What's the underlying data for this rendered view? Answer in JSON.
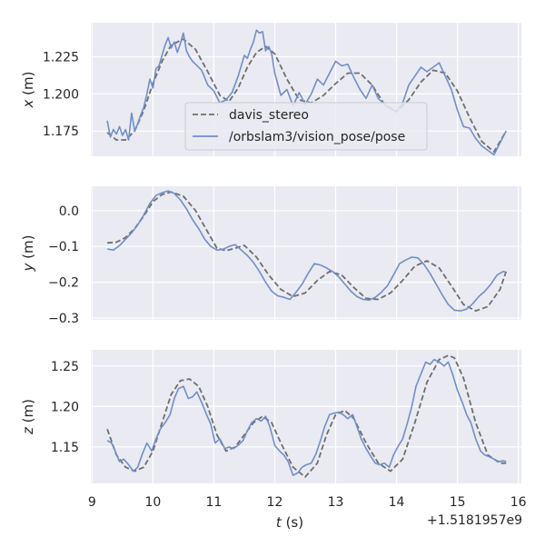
{
  "chart_data": {
    "type": "line",
    "x_label_var": "t",
    "x_label_unit": "(s)",
    "x_offset_label": "+1.5181957e9",
    "x_range": [
      8.98,
      16.05
    ],
    "x_ticks": [
      9,
      10,
      11,
      12,
      13,
      14,
      15,
      16
    ],
    "grid": true,
    "legend": {
      "placement": "inside-top-panel-center",
      "entries": [
        "davis_stereo",
        "/orbslam3/vision_pose/pose"
      ]
    },
    "series_styles": [
      {
        "name": "davis_stereo",
        "color": "#6e6e6e",
        "dash": "dashed"
      },
      {
        "name": "/orbslam3/vision_pose/pose",
        "color": "#6f8fc8",
        "dash": "solid"
      }
    ],
    "panels": [
      {
        "ylabel_var": "x",
        "ylabel_unit": "(m)",
        "ylim": [
          1.158,
          1.248
        ],
        "yticks": [
          "1.175",
          "1.200",
          "1.225"
        ],
        "series": [
          {
            "name": "davis_stereo",
            "x": [
              9.25,
              9.4,
              9.55,
              9.7,
              9.85,
              10.0,
              10.15,
              10.3,
              10.5,
              10.7,
              10.9,
              11.1,
              11.25,
              11.4,
              11.55,
              11.7,
              11.85,
              12.0,
              12.2,
              12.4,
              12.6,
              12.8,
              13.0,
              13.2,
              13.4,
              13.6,
              13.8,
              14.0,
              14.2,
              14.4,
              14.6,
              14.8,
              15.0,
              15.2,
              15.4,
              15.6,
              15.8
            ],
            "y": [
              1.174,
              1.169,
              1.169,
              1.175,
              1.189,
              1.207,
              1.222,
              1.233,
              1.237,
              1.23,
              1.215,
              1.199,
              1.195,
              1.204,
              1.218,
              1.228,
              1.232,
              1.227,
              1.21,
              1.196,
              1.194,
              1.199,
              1.207,
              1.214,
              1.214,
              1.206,
              1.193,
              1.188,
              1.196,
              1.208,
              1.216,
              1.214,
              1.202,
              1.184,
              1.168,
              1.161,
              1.175
            ]
          },
          {
            "name": "/orbslam3/vision_pose/pose",
            "x": [
              9.25,
              9.3,
              9.35,
              9.4,
              9.45,
              9.5,
              9.55,
              9.6,
              9.65,
              9.7,
              9.75,
              9.8,
              9.85,
              9.9,
              9.95,
              10.0,
              10.05,
              10.1,
              10.15,
              10.2,
              10.25,
              10.3,
              10.35,
              10.4,
              10.45,
              10.5,
              10.55,
              10.6,
              10.65,
              10.7,
              10.8,
              10.9,
              11.0,
              11.1,
              11.2,
              11.3,
              11.4,
              11.5,
              11.55,
              11.6,
              11.65,
              11.7,
              11.75,
              11.8,
              11.85,
              11.9,
              11.95,
              12.0,
              12.1,
              12.2,
              12.3,
              12.4,
              12.5,
              12.6,
              12.7,
              12.8,
              12.9,
              13.0,
              13.1,
              13.2,
              13.3,
              13.4,
              13.5,
              13.6,
              13.7,
              13.8,
              13.9,
              14.0,
              14.1,
              14.2,
              14.3,
              14.4,
              14.5,
              14.6,
              14.7,
              14.8,
              14.9,
              15.0,
              15.1,
              15.2,
              15.3,
              15.4,
              15.5,
              15.6,
              15.7,
              15.8
            ],
            "y": [
              1.182,
              1.171,
              1.176,
              1.173,
              1.178,
              1.172,
              1.176,
              1.169,
              1.187,
              1.175,
              1.18,
              1.186,
              1.191,
              1.2,
              1.21,
              1.204,
              1.217,
              1.219,
              1.226,
              1.233,
              1.238,
              1.231,
              1.235,
              1.228,
              1.234,
              1.241,
              1.229,
              1.225,
              1.222,
              1.22,
              1.216,
              1.206,
              1.202,
              1.194,
              1.196,
              1.201,
              1.212,
              1.226,
              1.224,
              1.23,
              1.235,
              1.243,
              1.241,
              1.242,
              1.229,
              1.232,
              1.227,
              1.214,
              1.199,
              1.203,
              1.192,
              1.201,
              1.193,
              1.2,
              1.21,
              1.206,
              1.214,
              1.222,
              1.219,
              1.22,
              1.211,
              1.203,
              1.197,
              1.206,
              1.197,
              1.193,
              1.19,
              1.188,
              1.194,
              1.206,
              1.212,
              1.218,
              1.215,
              1.218,
              1.221,
              1.212,
              1.203,
              1.189,
              1.178,
              1.177,
              1.17,
              1.165,
              1.162,
              1.159,
              1.167,
              1.175
            ]
          }
        ]
      },
      {
        "ylabel_var": "y",
        "ylabel_unit": "(m)",
        "ylim": [
          -0.305,
          0.068
        ],
        "yticks": [
          "0.0",
          "−0.1",
          "−0.2",
          "−0.3"
        ],
        "ytick_values": [
          0.0,
          -0.1,
          -0.2,
          -0.3
        ],
        "series": [
          {
            "name": "davis_stereo",
            "x": [
              9.25,
              9.4,
              9.55,
              9.7,
              9.85,
              10.0,
              10.15,
              10.3,
              10.5,
              10.7,
              10.9,
              11.05,
              11.2,
              11.35,
              11.5,
              11.7,
              11.9,
              12.1,
              12.3,
              12.5,
              12.7,
              12.9,
              13.1,
              13.3,
              13.5,
              13.7,
              13.9,
              14.1,
              14.3,
              14.5,
              14.7,
              14.9,
              15.1,
              15.3,
              15.5,
              15.7,
              15.8
            ],
            "y": [
              -0.09,
              -0.088,
              -0.075,
              -0.05,
              -0.015,
              0.025,
              0.045,
              0.052,
              0.04,
              0.0,
              -0.06,
              -0.105,
              -0.112,
              -0.105,
              -0.097,
              -0.13,
              -0.18,
              -0.22,
              -0.24,
              -0.23,
              -0.195,
              -0.17,
              -0.18,
              -0.215,
              -0.245,
              -0.248,
              -0.23,
              -0.195,
              -0.155,
              -0.14,
              -0.16,
              -0.21,
              -0.262,
              -0.28,
              -0.268,
              -0.22,
              -0.17
            ]
          },
          {
            "name": "/orbslam3/vision_pose/pose",
            "x": [
              9.25,
              9.35,
              9.45,
              9.55,
              9.65,
              9.75,
              9.85,
              9.95,
              10.05,
              10.15,
              10.25,
              10.35,
              10.45,
              10.55,
              10.65,
              10.75,
              10.85,
              10.95,
              11.05,
              11.15,
              11.25,
              11.35,
              11.45,
              11.55,
              11.65,
              11.75,
              11.85,
              11.95,
              12.05,
              12.15,
              12.25,
              12.35,
              12.45,
              12.55,
              12.65,
              12.75,
              12.85,
              12.95,
              13.05,
              13.15,
              13.25,
              13.35,
              13.45,
              13.55,
              13.65,
              13.75,
              13.85,
              13.95,
              14.05,
              14.15,
              14.25,
              14.35,
              14.45,
              14.55,
              14.65,
              14.75,
              14.85,
              14.95,
              15.05,
              15.15,
              15.25,
              15.35,
              15.45,
              15.55,
              15.65,
              15.75,
              15.8
            ],
            "y": [
              -0.107,
              -0.11,
              -0.098,
              -0.08,
              -0.062,
              -0.04,
              -0.012,
              0.02,
              0.042,
              0.05,
              0.055,
              0.048,
              0.03,
              0.005,
              -0.025,
              -0.05,
              -0.08,
              -0.1,
              -0.11,
              -0.108,
              -0.1,
              -0.095,
              -0.11,
              -0.125,
              -0.145,
              -0.17,
              -0.2,
              -0.225,
              -0.238,
              -0.242,
              -0.248,
              -0.228,
              -0.205,
              -0.175,
              -0.148,
              -0.152,
              -0.16,
              -0.17,
              -0.185,
              -0.205,
              -0.225,
              -0.24,
              -0.248,
              -0.25,
              -0.242,
              -0.228,
              -0.21,
              -0.18,
              -0.148,
              -0.138,
              -0.13,
              -0.132,
              -0.15,
              -0.175,
              -0.205,
              -0.235,
              -0.262,
              -0.278,
              -0.28,
              -0.275,
              -0.26,
              -0.24,
              -0.225,
              -0.205,
              -0.18,
              -0.17,
              -0.172
            ]
          }
        ]
      },
      {
        "ylabel_var": "z",
        "ylabel_unit": "(m)",
        "ylim": [
          1.105,
          1.27
        ],
        "yticks": [
          "1.15",
          "1.20",
          "1.25"
        ],
        "series": [
          {
            "name": "davis_stereo",
            "x": [
              9.25,
              9.4,
              9.55,
              9.7,
              9.85,
              10.0,
              10.15,
              10.3,
              10.45,
              10.6,
              10.75,
              10.9,
              11.05,
              11.2,
              11.35,
              11.5,
              11.65,
              11.8,
              11.95,
              12.1,
              12.3,
              12.5,
              12.7,
              12.85,
              13.0,
              13.15,
              13.3,
              13.5,
              13.7,
              13.9,
              14.1,
              14.3,
              14.5,
              14.7,
              14.85,
              14.95,
              15.1,
              15.3,
              15.5,
              15.7,
              15.8
            ],
            "y": [
              1.172,
              1.14,
              1.125,
              1.12,
              1.125,
              1.145,
              1.18,
              1.215,
              1.232,
              1.234,
              1.225,
              1.2,
              1.165,
              1.145,
              1.15,
              1.165,
              1.18,
              1.188,
              1.18,
              1.155,
              1.125,
              1.113,
              1.13,
              1.165,
              1.19,
              1.195,
              1.185,
              1.155,
              1.13,
              1.12,
              1.135,
              1.18,
              1.23,
              1.258,
              1.263,
              1.26,
              1.235,
              1.18,
              1.14,
              1.13,
              1.13
            ]
          },
          {
            "name": "/orbslam3/vision_pose/pose",
            "x": [
              9.25,
              9.32,
              9.38,
              9.45,
              9.52,
              9.6,
              9.68,
              9.75,
              9.82,
              9.9,
              9.98,
              10.05,
              10.12,
              10.2,
              10.28,
              10.35,
              10.42,
              10.5,
              10.58,
              10.65,
              10.72,
              10.8,
              10.88,
              10.95,
              11.02,
              11.1,
              11.18,
              11.25,
              11.32,
              11.4,
              11.48,
              11.55,
              11.62,
              11.7,
              11.78,
              11.85,
              11.92,
              12.0,
              12.08,
              12.15,
              12.22,
              12.3,
              12.38,
              12.45,
              12.52,
              12.6,
              12.68,
              12.75,
              12.82,
              12.9,
              12.98,
              13.05,
              13.12,
              13.2,
              13.28,
              13.35,
              13.42,
              13.5,
              13.58,
              13.65,
              13.72,
              13.8,
              13.88,
              13.95,
              14.02,
              14.1,
              14.18,
              14.25,
              14.32,
              14.4,
              14.48,
              14.55,
              14.62,
              14.7,
              14.78,
              14.85,
              14.92,
              15.0,
              15.08,
              15.15,
              15.22,
              15.3,
              15.38,
              15.45,
              15.52,
              15.6,
              15.68,
              15.75,
              15.8
            ],
            "y": [
              1.158,
              1.155,
              1.145,
              1.132,
              1.135,
              1.128,
              1.12,
              1.125,
              1.14,
              1.155,
              1.145,
              1.16,
              1.172,
              1.18,
              1.19,
              1.21,
              1.222,
              1.225,
              1.21,
              1.212,
              1.218,
              1.205,
              1.19,
              1.178,
              1.155,
              1.16,
              1.148,
              1.15,
              1.148,
              1.152,
              1.158,
              1.17,
              1.18,
              1.185,
              1.182,
              1.188,
              1.175,
              1.152,
              1.145,
              1.14,
              1.132,
              1.115,
              1.118,
              1.125,
              1.128,
              1.13,
              1.142,
              1.158,
              1.175,
              1.19,
              1.192,
              1.193,
              1.19,
              1.185,
              1.19,
              1.175,
              1.16,
              1.148,
              1.138,
              1.13,
              1.128,
              1.13,
              1.125,
              1.14,
              1.15,
              1.16,
              1.18,
              1.2,
              1.225,
              1.24,
              1.255,
              1.252,
              1.258,
              1.255,
              1.25,
              1.255,
              1.24,
              1.22,
              1.205,
              1.19,
              1.18,
              1.16,
              1.145,
              1.14,
              1.138,
              1.135,
              1.132,
              1.133,
              1.132
            ]
          }
        ]
      }
    ]
  }
}
